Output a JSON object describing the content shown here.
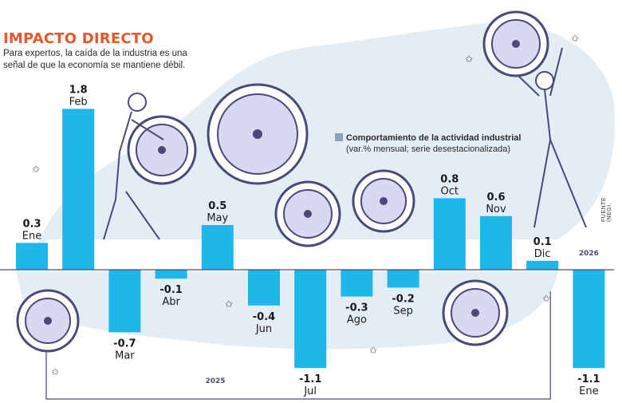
{
  "title": "IMPACTO DIRECTO",
  "subtitle": "Para expertos, la caída de la industria es una señal de que la economía se mantiene débil.",
  "source": "FUENTE: INEGI.",
  "colors": {
    "bar": "#1fb6ea",
    "title": "#e8572a",
    "legend_swatch": "#8aa4b8",
    "blob": "#e4edf4",
    "gear_stroke": "#4a4a78"
  },
  "chart_data": {
    "type": "bar",
    "title": "Comportamiento de la actividad industrial",
    "subtitle": "(var.% mensual; serie desestacionalizada)",
    "categories": [
      "Ene",
      "Feb",
      "Mar",
      "Abr",
      "May",
      "Jun",
      "Jul",
      "Ago",
      "Sep",
      "Oct",
      "Nov",
      "Dic",
      "Ene"
    ],
    "values": [
      0.3,
      1.8,
      -0.7,
      -0.1,
      0.5,
      -0.4,
      -1.1,
      -0.3,
      -0.2,
      0.8,
      0.6,
      0.1,
      -1.1
    ],
    "value_labels": [
      "0.3",
      "1.8",
      "-0.7",
      "-0.1",
      "0.5",
      "-0.4",
      "-1.1",
      "-0.3",
      "-0.2",
      "0.8",
      "0.6",
      "0.1",
      "-1.1"
    ],
    "year_groups": [
      {
        "label": "2025",
        "first": 0,
        "last": 11
      },
      {
        "label": "2026",
        "first": 12,
        "last": 12
      }
    ],
    "ylim": [
      -1.2,
      1.8
    ],
    "grid": false,
    "legend_position": "top-right"
  }
}
